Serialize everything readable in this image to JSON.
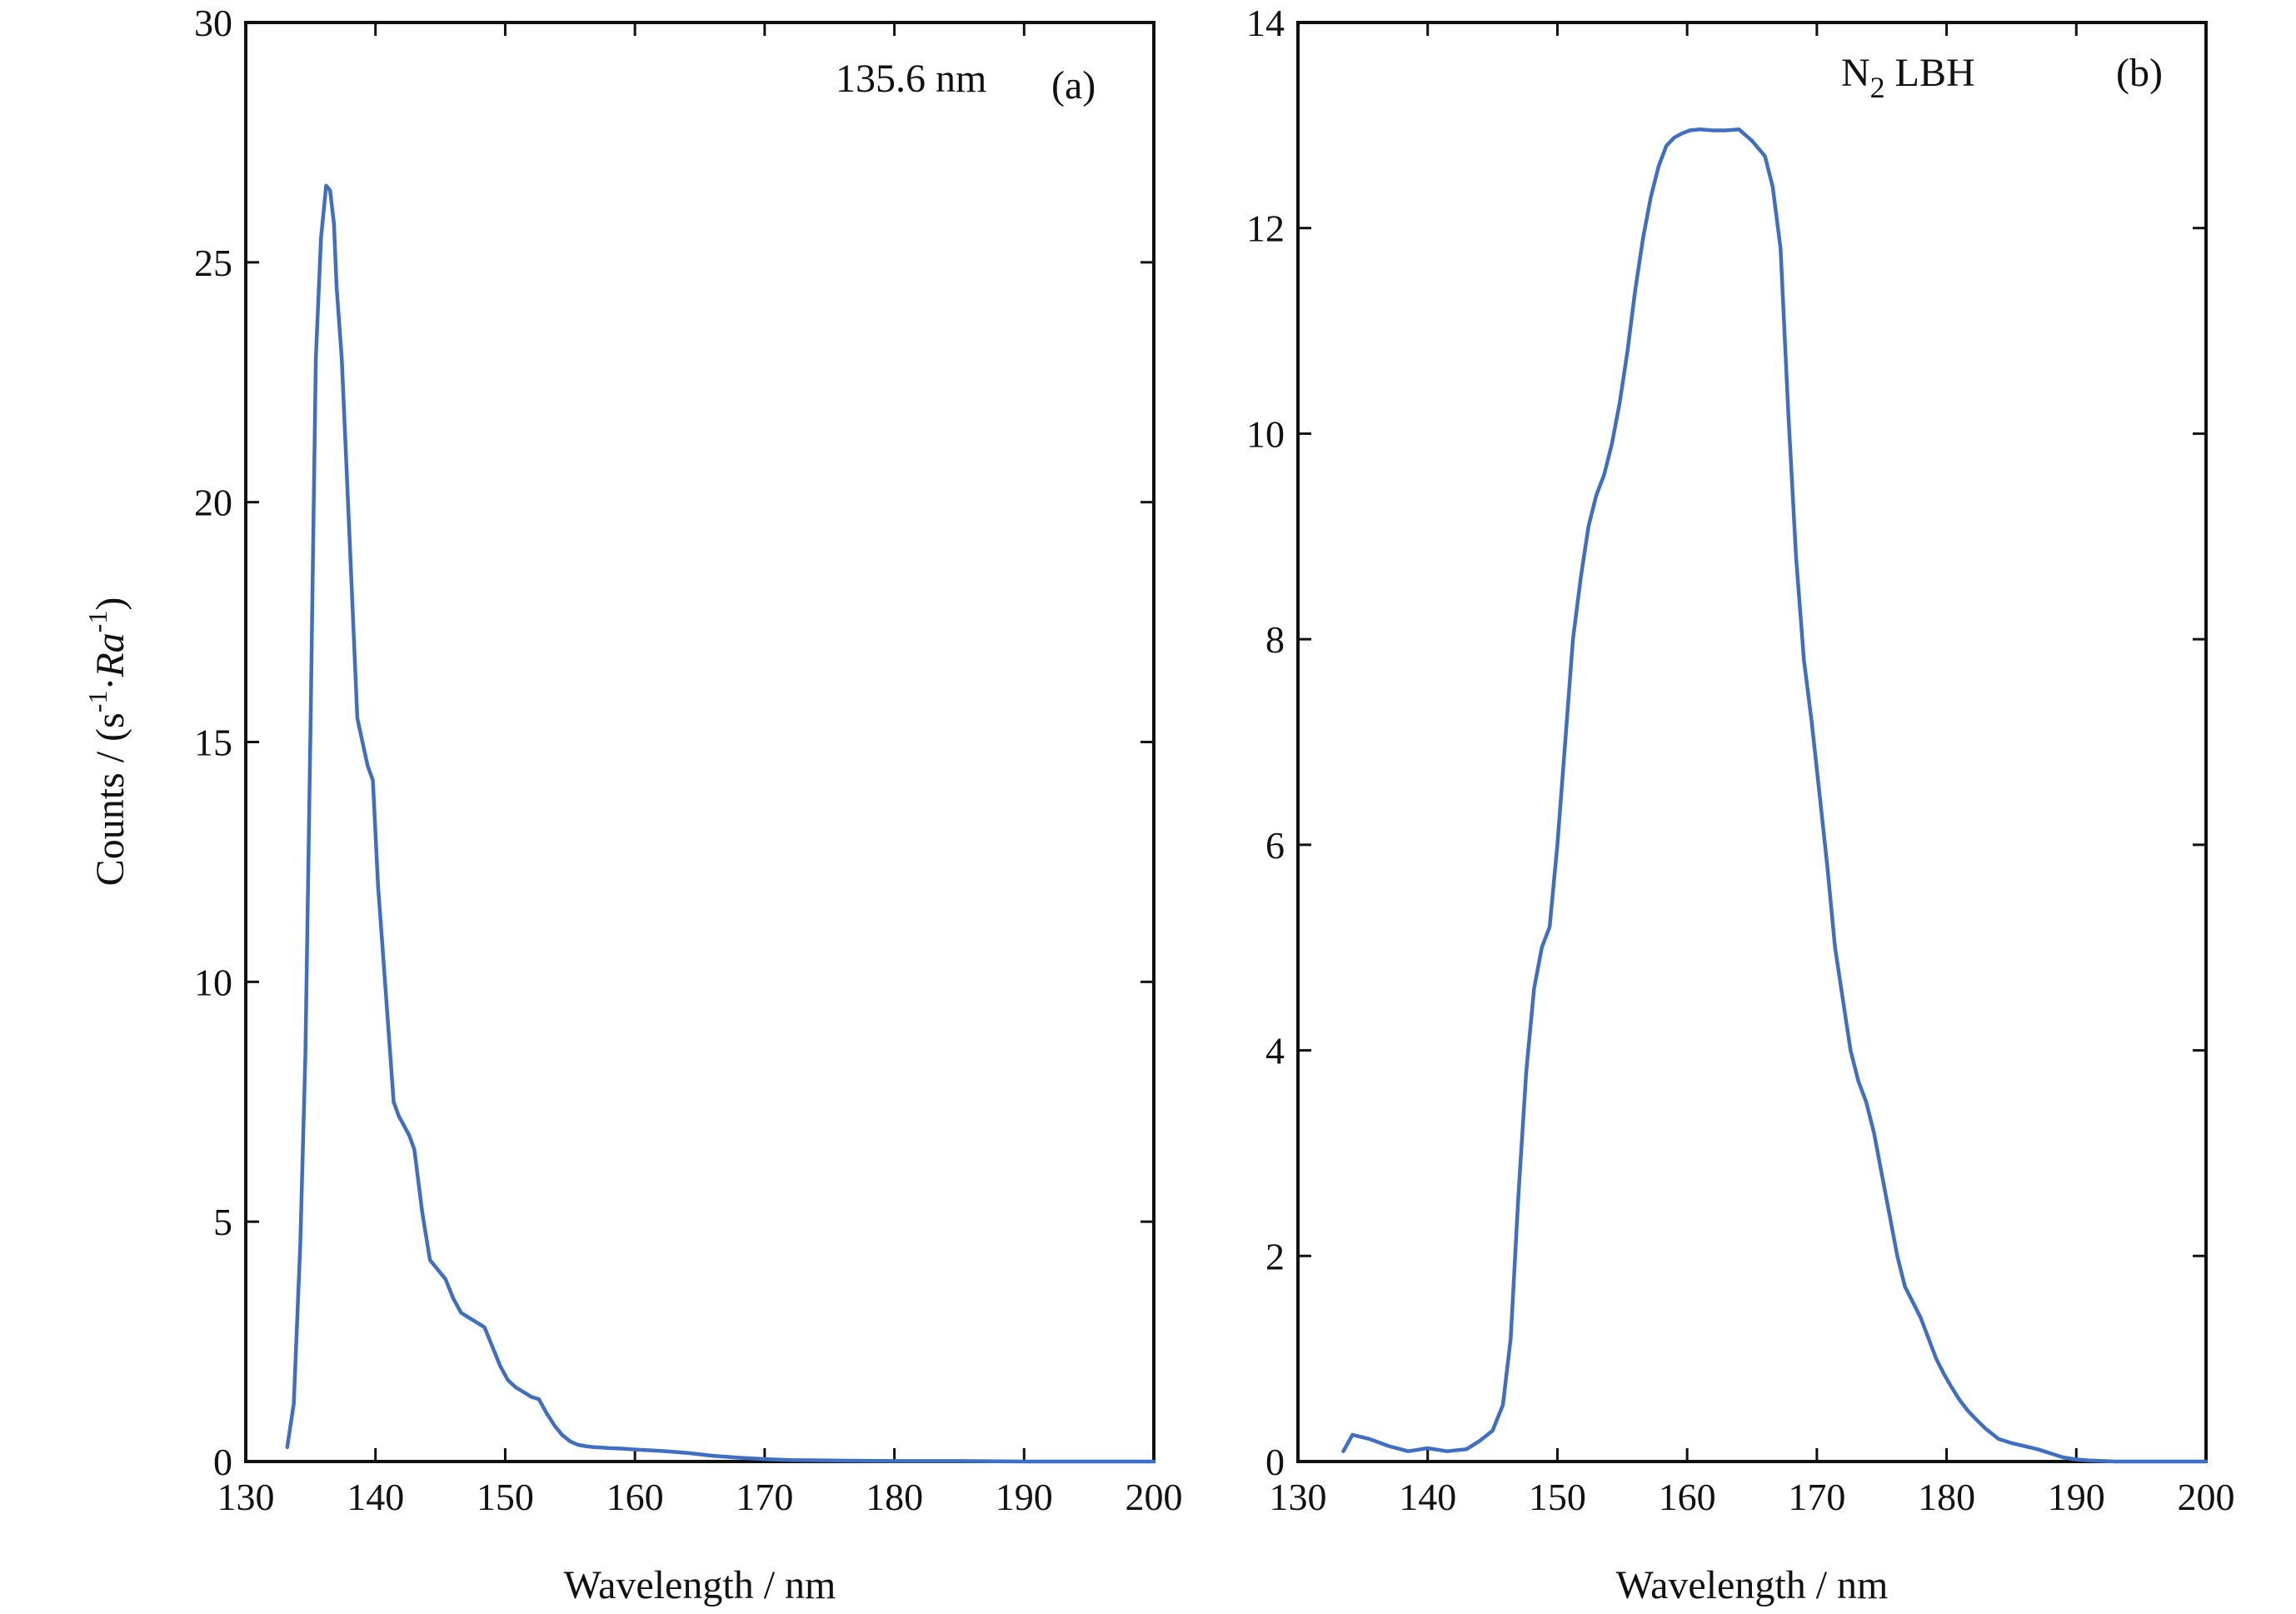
{
  "chart_data": [
    {
      "type": "line",
      "panel_label": "(a)",
      "annotation": "135.6 nm",
      "xlabel": "Wavelength / nm",
      "ylabel": "Counts / (s",
      "ylabel_exp1": "-1",
      "ylabel_mid": "·",
      "ylabel_ra": "Ra",
      "ylabel_exp2": "-1",
      "ylabel_close": ")",
      "xlim": [
        130,
        200
      ],
      "ylim": [
        0,
        30
      ],
      "xticks": [
        130,
        140,
        150,
        160,
        170,
        180,
        190,
        200
      ],
      "yticks": [
        0,
        5,
        10,
        15,
        20,
        25,
        30
      ],
      "grid": false,
      "line_color": "#3f6fc4",
      "series": [
        {
          "x": [
            133.2,
            133.7,
            134.2,
            134.6,
            135.0,
            135.4,
            135.8,
            136.2,
            136.5,
            136.8,
            137.0,
            137.4,
            137.8,
            138.2,
            138.6,
            139.0,
            139.4,
            139.8,
            140.2,
            140.6,
            141.0,
            141.4,
            141.8,
            142.2,
            142.6,
            143.0,
            143.6,
            144.2,
            144.8,
            145.4,
            146.0,
            146.6,
            147.2,
            147.8,
            148.4,
            149.0,
            149.6,
            150.2,
            150.8,
            151.4,
            152.0,
            152.6,
            153.2,
            153.8,
            154.4,
            155.0,
            155.6,
            156.2,
            156.8,
            157.4,
            158.0,
            159.0,
            160.0,
            162.0,
            164.0,
            166.0,
            168.0,
            170.0,
            172.0,
            175.0,
            180.0,
            185.0,
            190.0,
            195.0,
            200.0
          ],
          "y": [
            0.3,
            1.2,
            4.5,
            8.5,
            15.5,
            23.0,
            25.5,
            26.6,
            26.5,
            25.8,
            24.5,
            23.0,
            20.5,
            18.0,
            15.5,
            15.0,
            14.5,
            14.2,
            12.0,
            10.5,
            9.0,
            7.5,
            7.2,
            7.0,
            6.8,
            6.5,
            5.2,
            4.2,
            4.0,
            3.8,
            3.4,
            3.1,
            3.0,
            2.9,
            2.8,
            2.4,
            2.0,
            1.7,
            1.55,
            1.45,
            1.35,
            1.3,
            1.0,
            0.75,
            0.55,
            0.42,
            0.35,
            0.32,
            0.3,
            0.29,
            0.28,
            0.27,
            0.25,
            0.22,
            0.18,
            0.12,
            0.08,
            0.05,
            0.03,
            0.02,
            0.01,
            0.01,
            0.0,
            0.0,
            0.0
          ]
        }
      ]
    },
    {
      "type": "line",
      "panel_label": "(b)",
      "annotation_main": "N",
      "annotation_sub": "2",
      "annotation_rest": " LBH",
      "xlabel": "Wavelength / nm",
      "xlim": [
        130,
        200
      ],
      "ylim": [
        0,
        14
      ],
      "xticks": [
        130,
        140,
        150,
        160,
        170,
        180,
        190,
        200
      ],
      "yticks": [
        0,
        2,
        4,
        6,
        8,
        10,
        12,
        14
      ],
      "grid": false,
      "line_color": "#3f6fc4",
      "series": [
        {
          "x": [
            133.5,
            134.2,
            135.5,
            137.0,
            138.5,
            140.0,
            141.5,
            143.0,
            144.0,
            145.0,
            145.8,
            146.4,
            147.0,
            147.6,
            148.2,
            148.8,
            149.4,
            150.0,
            150.6,
            151.2,
            151.8,
            152.4,
            153.0,
            153.6,
            154.2,
            154.8,
            155.4,
            156.0,
            156.6,
            157.2,
            157.8,
            158.4,
            159.0,
            159.6,
            160.2,
            161.0,
            162.0,
            163.0,
            164.0,
            165.0,
            166.0,
            166.6,
            167.2,
            167.8,
            168.4,
            169.0,
            169.6,
            170.2,
            170.8,
            171.4,
            172.0,
            172.6,
            173.2,
            173.8,
            174.4,
            175.0,
            175.6,
            176.2,
            176.8,
            177.4,
            178.0,
            178.6,
            179.2,
            179.8,
            180.4,
            181.0,
            181.6,
            182.2,
            183.0,
            184.0,
            185.0,
            186.0,
            187.0,
            188.0,
            189.0,
            190.0,
            191.0,
            193.0,
            196.0,
            200.0
          ],
          "y": [
            0.1,
            0.26,
            0.22,
            0.15,
            0.1,
            0.13,
            0.1,
            0.12,
            0.2,
            0.3,
            0.55,
            1.2,
            2.6,
            3.8,
            4.6,
            5.0,
            5.2,
            6.0,
            7.0,
            8.0,
            8.6,
            9.1,
            9.4,
            9.6,
            9.9,
            10.3,
            10.8,
            11.4,
            11.9,
            12.3,
            12.6,
            12.8,
            12.88,
            12.92,
            12.95,
            12.96,
            12.95,
            12.95,
            12.96,
            12.85,
            12.7,
            12.4,
            11.8,
            10.2,
            8.8,
            7.8,
            7.2,
            6.5,
            5.8,
            5.0,
            4.5,
            4.0,
            3.7,
            3.5,
            3.2,
            2.8,
            2.4,
            2.0,
            1.7,
            1.55,
            1.4,
            1.2,
            1.0,
            0.85,
            0.72,
            0.6,
            0.5,
            0.42,
            0.32,
            0.22,
            0.18,
            0.15,
            0.12,
            0.08,
            0.04,
            0.02,
            0.01,
            0.0,
            0.0,
            0.0
          ]
        }
      ]
    }
  ]
}
